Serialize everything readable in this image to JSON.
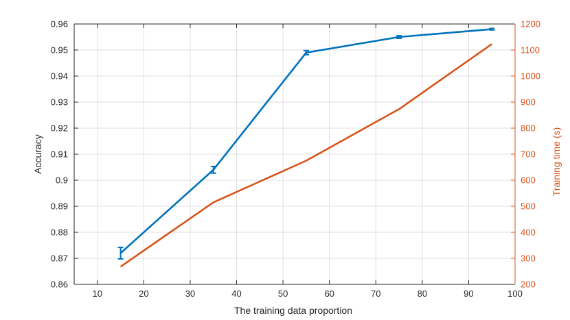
{
  "chart_data": {
    "type": "line",
    "xlabel": "The training data proportion",
    "ylabel_left": "Accuracy",
    "ylabel_right": "Training time (s)",
    "xlim": [
      5,
      100
    ],
    "ylim_left": [
      0.86,
      0.96
    ],
    "ylim_right": [
      200,
      1200
    ],
    "x_ticks": [
      "10",
      "20",
      "30",
      "40",
      "50",
      "60",
      "70",
      "80",
      "90",
      "100"
    ],
    "y_left_ticks": [
      "0.86",
      "0.87",
      "0.88",
      "0.89",
      "0.9",
      "0.91",
      "0.92",
      "0.93",
      "0.94",
      "0.95",
      "0.96"
    ],
    "y_right_ticks": [
      "200",
      "300",
      "400",
      "500",
      "600",
      "700",
      "800",
      "900",
      "1000",
      "1100",
      "1200"
    ],
    "grid": true,
    "series": [
      {
        "axis": "left",
        "color": "#0072bd",
        "x": [
          15,
          35,
          55,
          75,
          95
        ],
        "y": [
          0.872,
          0.904,
          0.949,
          0.955,
          0.958
        ],
        "error": [
          0.0022,
          0.0013,
          0.0008,
          0.0005,
          0.0003
        ]
      },
      {
        "axis": "right",
        "color": "#d95319",
        "x": [
          15,
          35,
          55,
          75,
          95
        ],
        "y": [
          268,
          515,
          675,
          873,
          1123
        ]
      }
    ]
  }
}
